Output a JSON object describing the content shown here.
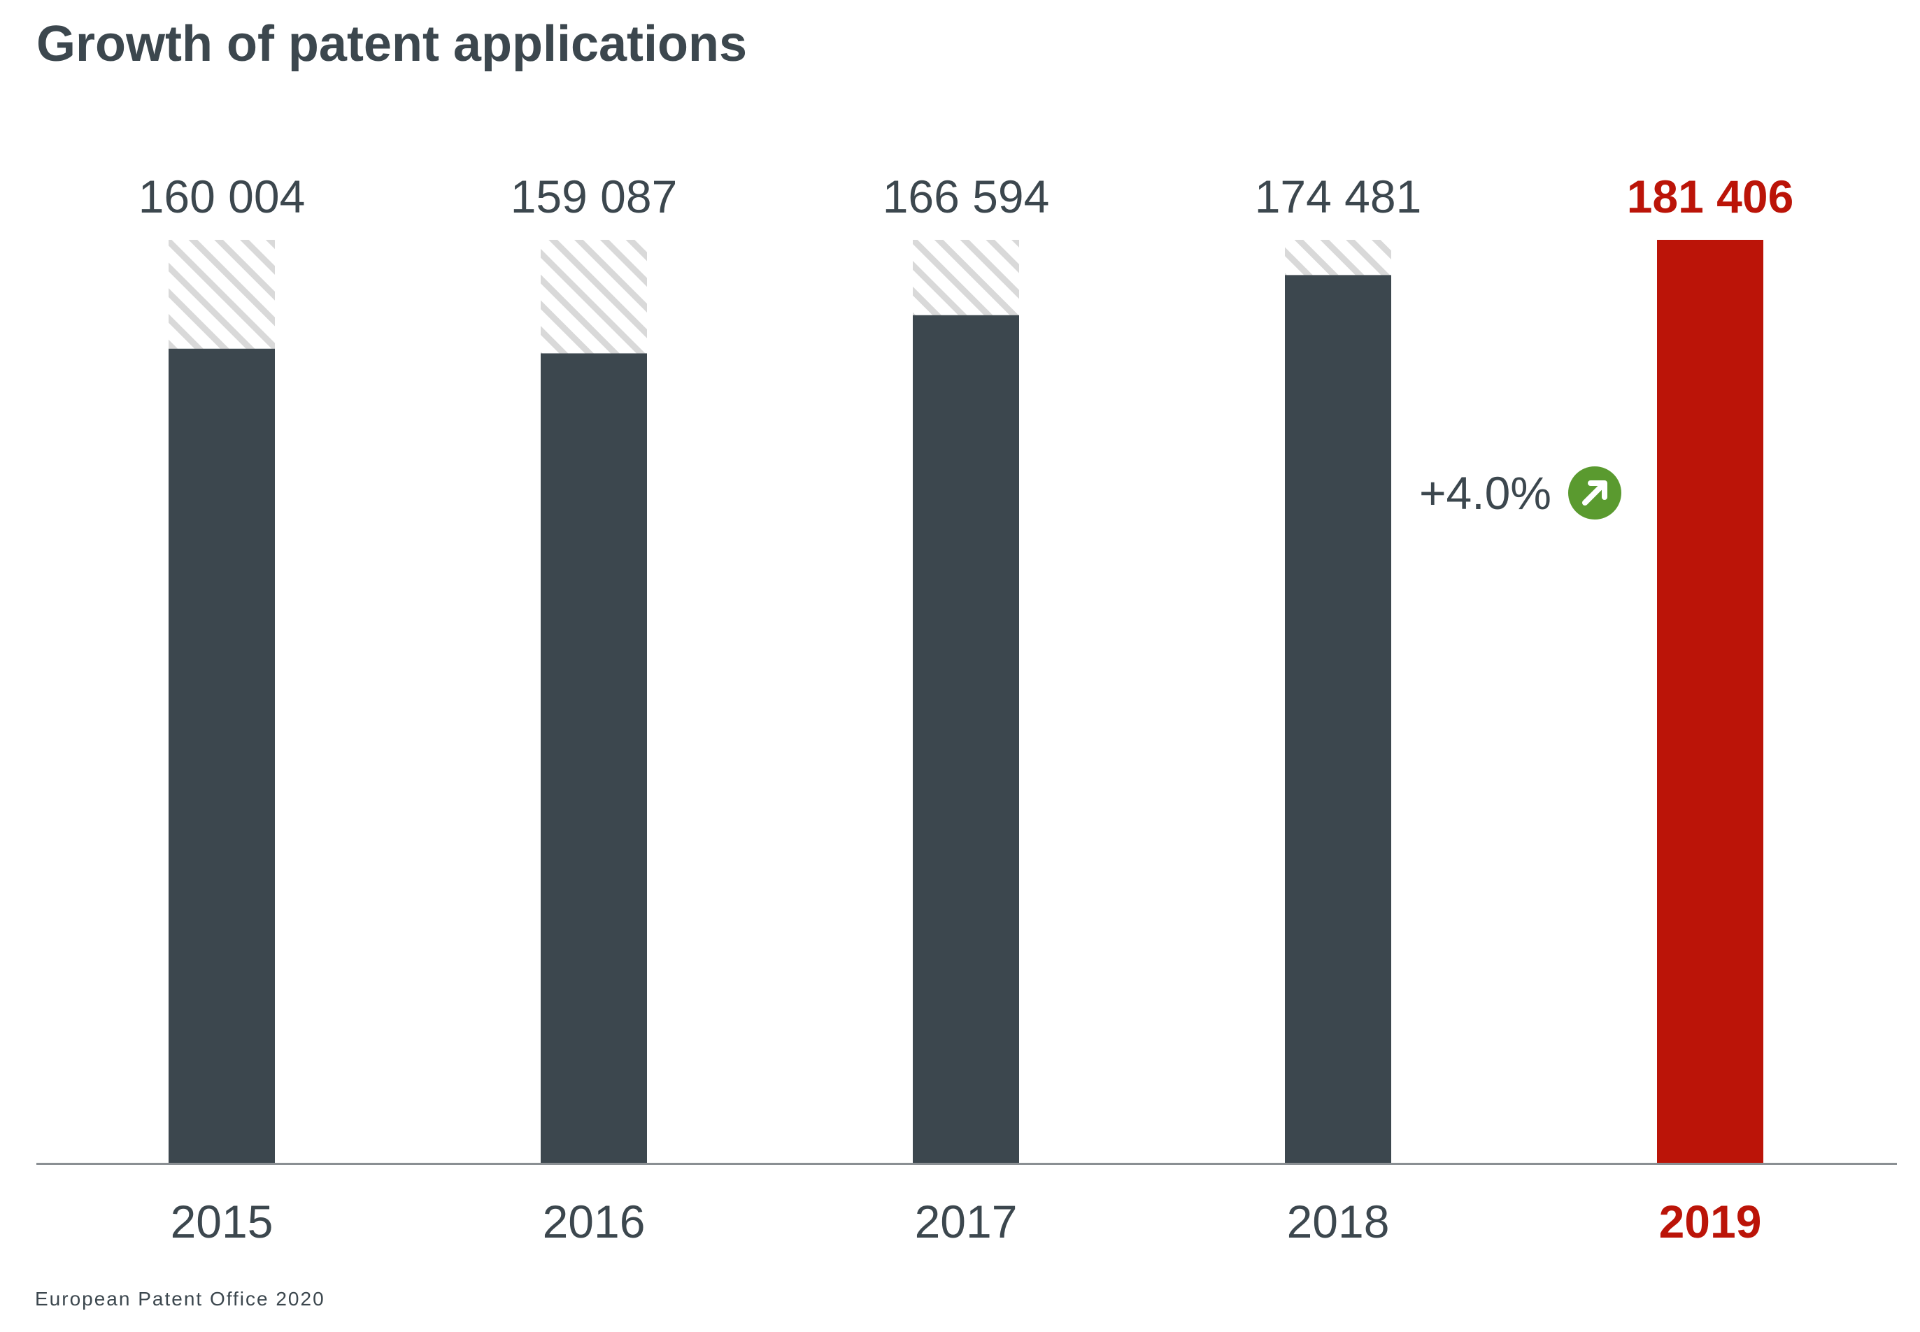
{
  "colors": {
    "bar": "#3c474e",
    "highlight": "#bb1408",
    "hatch": "#d9d9d9",
    "axis": "#8a8f93",
    "growth_icon": "#5a9a2f"
  },
  "chart_data": {
    "type": "bar",
    "title": "Growth of patent applications",
    "categories": [
      "2015",
      "2016",
      "2017",
      "2018",
      "2019"
    ],
    "values": [
      160004,
      159087,
      166594,
      174481,
      181406
    ],
    "value_labels": [
      "160 004",
      "159 087",
      "166 594",
      "174 481",
      "181 406"
    ],
    "highlight_index": 4,
    "reference_value": 181406,
    "annotation": {
      "text": "+4.0%",
      "icon": "arrow-up-right-icon"
    },
    "ylim": [
      0,
      181406
    ],
    "grid": false,
    "xlabel": "",
    "ylabel": ""
  },
  "footer": {
    "source": "European Patent Office 2020"
  }
}
